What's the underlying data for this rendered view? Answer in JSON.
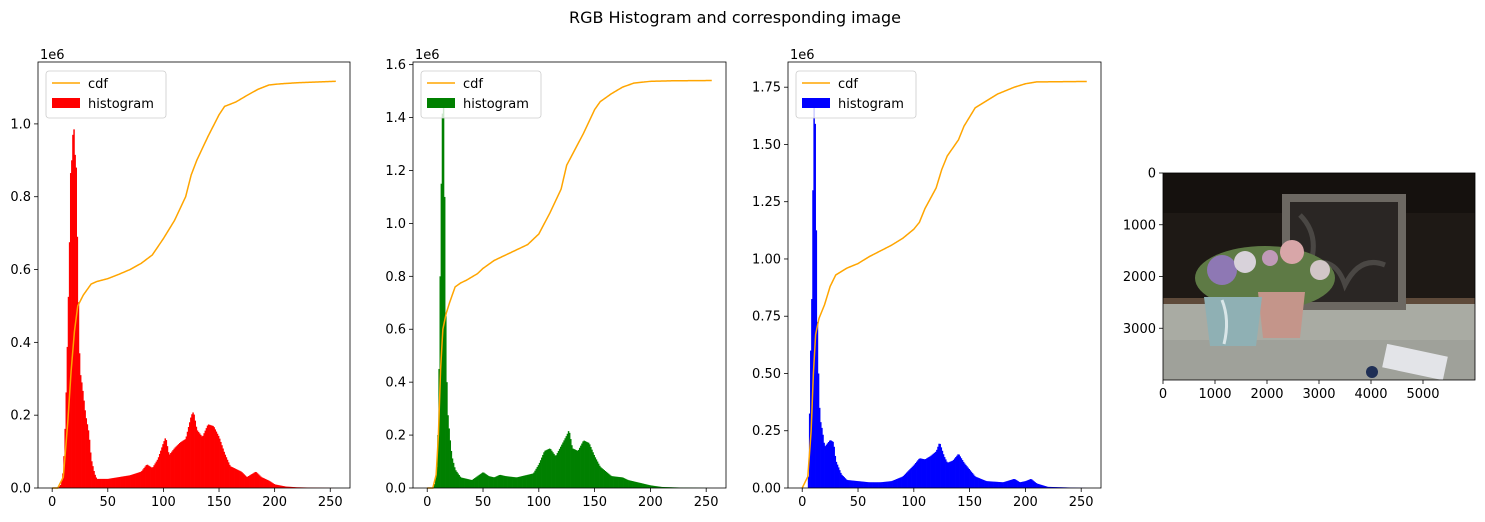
{
  "suptitle": "RGB Histogram and corresponding image",
  "colors": {
    "cdf": "#ffa500",
    "red": "#ff0000",
    "green": "#008000",
    "blue": "#0000ff",
    "axis": "#000000"
  },
  "legend": {
    "cdf": "cdf",
    "histogram": "histogram",
    "placement": "upper left"
  },
  "chart_data": [
    {
      "type": "bar",
      "channel": "red",
      "offset_label": "1e6",
      "xlim": [
        -12.75,
        267.75
      ],
      "ylim": [
        0,
        1.17
      ],
      "xticks": [
        0,
        50,
        100,
        150,
        200,
        250
      ],
      "yticks": [
        0.0,
        0.2,
        0.4,
        0.6,
        0.8,
        1.0
      ],
      "ytick_labels": [
        "0.0",
        "0.2",
        "0.4",
        "0.6",
        "0.8",
        "1.0"
      ],
      "histogram_keypoints": [
        [
          0,
          0
        ],
        [
          5,
          0
        ],
        [
          8,
          0.01
        ],
        [
          10,
          0.05
        ],
        [
          12,
          0.2
        ],
        [
          14,
          0.45
        ],
        [
          15,
          0.6
        ],
        [
          16,
          0.75
        ],
        [
          17,
          0.98
        ],
        [
          18,
          0.82
        ],
        [
          19,
          1.12
        ],
        [
          20,
          0.85
        ],
        [
          21,
          0.98
        ],
        [
          22,
          0.78
        ],
        [
          23,
          0.6
        ],
        [
          24,
          0.42
        ],
        [
          25,
          0.32
        ],
        [
          27,
          0.28
        ],
        [
          30,
          0.2
        ],
        [
          33,
          0.15
        ],
        [
          35,
          0.08
        ],
        [
          38,
          0.04
        ],
        [
          40,
          0.025
        ],
        [
          50,
          0.025
        ],
        [
          60,
          0.03
        ],
        [
          70,
          0.035
        ],
        [
          80,
          0.045
        ],
        [
          85,
          0.065
        ],
        [
          90,
          0.055
        ],
        [
          95,
          0.08
        ],
        [
          100,
          0.125
        ],
        [
          102,
          0.14
        ],
        [
          105,
          0.09
        ],
        [
          110,
          0.11
        ],
        [
          115,
          0.125
        ],
        [
          120,
          0.135
        ],
        [
          125,
          0.2
        ],
        [
          127,
          0.21
        ],
        [
          130,
          0.16
        ],
        [
          135,
          0.14
        ],
        [
          140,
          0.175
        ],
        [
          145,
          0.17
        ],
        [
          150,
          0.14
        ],
        [
          155,
          0.095
        ],
        [
          160,
          0.06
        ],
        [
          170,
          0.045
        ],
        [
          175,
          0.03
        ],
        [
          183,
          0.045
        ],
        [
          188,
          0.03
        ],
        [
          195,
          0.02
        ],
        [
          200,
          0.01
        ],
        [
          210,
          0.004
        ],
        [
          220,
          0.002
        ],
        [
          235,
          0.001
        ],
        [
          255,
          0
        ]
      ],
      "cdf_keypoints": [
        [
          0,
          0
        ],
        [
          5,
          0
        ],
        [
          10,
          0.03
        ],
        [
          14,
          0.18
        ],
        [
          17,
          0.32
        ],
        [
          20,
          0.43
        ],
        [
          23,
          0.5
        ],
        [
          28,
          0.53
        ],
        [
          35,
          0.56
        ],
        [
          40,
          0.567
        ],
        [
          50,
          0.575
        ],
        [
          60,
          0.587
        ],
        [
          70,
          0.6
        ],
        [
          80,
          0.617
        ],
        [
          90,
          0.64
        ],
        [
          100,
          0.685
        ],
        [
          110,
          0.735
        ],
        [
          120,
          0.8
        ],
        [
          125,
          0.86
        ],
        [
          130,
          0.9
        ],
        [
          140,
          0.965
        ],
        [
          150,
          1.025
        ],
        [
          155,
          1.048
        ],
        [
          165,
          1.06
        ],
        [
          175,
          1.078
        ],
        [
          185,
          1.095
        ],
        [
          195,
          1.107
        ],
        [
          205,
          1.11
        ],
        [
          220,
          1.113
        ],
        [
          255,
          1.117
        ]
      ]
    },
    {
      "type": "bar",
      "channel": "green",
      "offset_label": "1e6",
      "xlim": [
        -12.75,
        267.75
      ],
      "ylim": [
        0,
        1.61
      ],
      "xticks": [
        0,
        50,
        100,
        150,
        200,
        250
      ],
      "yticks": [
        0.0,
        0.2,
        0.4,
        0.6,
        0.8,
        1.0,
        1.2,
        1.4,
        1.6
      ],
      "ytick_labels": [
        "0.0",
        "0.2",
        "0.4",
        "0.6",
        "0.8",
        "1.0",
        "1.2",
        "1.4",
        "1.6"
      ],
      "histogram_keypoints": [
        [
          0,
          0
        ],
        [
          5,
          0
        ],
        [
          7,
          0.02
        ],
        [
          9,
          0.1
        ],
        [
          10,
          0.3
        ],
        [
          11,
          0.6
        ],
        [
          12,
          1.0
        ],
        [
          13,
          1.3
        ],
        [
          14,
          1.53
        ],
        [
          15,
          1.4
        ],
        [
          16,
          0.8
        ],
        [
          17,
          0.5
        ],
        [
          18,
          0.3
        ],
        [
          20,
          0.2
        ],
        [
          22,
          0.12
        ],
        [
          25,
          0.07
        ],
        [
          30,
          0.04
        ],
        [
          40,
          0.03
        ],
        [
          50,
          0.06
        ],
        [
          55,
          0.045
        ],
        [
          60,
          0.04
        ],
        [
          65,
          0.05
        ],
        [
          70,
          0.045
        ],
        [
          80,
          0.04
        ],
        [
          90,
          0.05
        ],
        [
          95,
          0.055
        ],
        [
          100,
          0.09
        ],
        [
          105,
          0.14
        ],
        [
          110,
          0.15
        ],
        [
          115,
          0.12
        ],
        [
          120,
          0.16
        ],
        [
          125,
          0.2
        ],
        [
          127,
          0.22
        ],
        [
          130,
          0.15
        ],
        [
          135,
          0.14
        ],
        [
          140,
          0.18
        ],
        [
          145,
          0.17
        ],
        [
          150,
          0.12
        ],
        [
          155,
          0.08
        ],
        [
          165,
          0.045
        ],
        [
          175,
          0.04
        ],
        [
          180,
          0.03
        ],
        [
          185,
          0.025
        ],
        [
          195,
          0.015
        ],
        [
          200,
          0.01
        ],
        [
          210,
          0.004
        ],
        [
          225,
          0.002
        ],
        [
          255,
          0
        ]
      ],
      "cdf_keypoints": [
        [
          0,
          0
        ],
        [
          5,
          0
        ],
        [
          8,
          0.05
        ],
        [
          10,
          0.2
        ],
        [
          12,
          0.45
        ],
        [
          14,
          0.6
        ],
        [
          17,
          0.66
        ],
        [
          20,
          0.7
        ],
        [
          25,
          0.76
        ],
        [
          30,
          0.775
        ],
        [
          35,
          0.785
        ],
        [
          45,
          0.81
        ],
        [
          50,
          0.83
        ],
        [
          60,
          0.86
        ],
        [
          70,
          0.88
        ],
        [
          80,
          0.9
        ],
        [
          90,
          0.92
        ],
        [
          100,
          0.96
        ],
        [
          110,
          1.04
        ],
        [
          120,
          1.13
        ],
        [
          125,
          1.22
        ],
        [
          130,
          1.26
        ],
        [
          140,
          1.34
        ],
        [
          150,
          1.43
        ],
        [
          155,
          1.46
        ],
        [
          165,
          1.49
        ],
        [
          175,
          1.515
        ],
        [
          185,
          1.53
        ],
        [
          200,
          1.537
        ],
        [
          220,
          1.539
        ],
        [
          255,
          1.54
        ]
      ]
    },
    {
      "type": "bar",
      "channel": "blue",
      "offset_label": "1e6",
      "xlim": [
        -12.75,
        267.75
      ],
      "ylim": [
        0,
        1.86
      ],
      "xticks": [
        0,
        50,
        100,
        150,
        200,
        250
      ],
      "yticks": [
        0.0,
        0.25,
        0.5,
        0.75,
        1.0,
        1.25,
        1.5,
        1.75
      ],
      "ytick_labels": [
        "0.00",
        "0.25",
        "0.50",
        "0.75",
        "1.00",
        "1.25",
        "1.50",
        "1.75"
      ],
      "histogram_keypoints": [
        [
          0,
          0
        ],
        [
          5,
          0
        ],
        [
          6,
          0.1
        ],
        [
          7,
          0.55
        ],
        [
          8,
          0.65
        ],
        [
          9,
          1.0
        ],
        [
          10,
          1.6
        ],
        [
          11,
          1.78
        ],
        [
          12,
          1.4
        ],
        [
          13,
          0.85
        ],
        [
          14,
          0.6
        ],
        [
          15,
          0.4
        ],
        [
          16,
          0.3
        ],
        [
          18,
          0.25
        ],
        [
          20,
          0.18
        ],
        [
          25,
          0.21
        ],
        [
          28,
          0.2
        ],
        [
          30,
          0.12
        ],
        [
          35,
          0.06
        ],
        [
          40,
          0.035
        ],
        [
          50,
          0.03
        ],
        [
          60,
          0.025
        ],
        [
          70,
          0.025
        ],
        [
          80,
          0.03
        ],
        [
          90,
          0.05
        ],
        [
          100,
          0.1
        ],
        [
          105,
          0.13
        ],
        [
          110,
          0.125
        ],
        [
          115,
          0.14
        ],
        [
          120,
          0.16
        ],
        [
          123,
          0.2
        ],
        [
          127,
          0.14
        ],
        [
          130,
          0.11
        ],
        [
          135,
          0.12
        ],
        [
          140,
          0.15
        ],
        [
          145,
          0.11
        ],
        [
          150,
          0.08
        ],
        [
          155,
          0.05
        ],
        [
          165,
          0.03
        ],
        [
          180,
          0.025
        ],
        [
          190,
          0.04
        ],
        [
          195,
          0.025
        ],
        [
          200,
          0.03
        ],
        [
          205,
          0.04
        ],
        [
          210,
          0.02
        ],
        [
          220,
          0.005
        ],
        [
          255,
          0
        ]
      ],
      "cdf_keypoints": [
        [
          0,
          0
        ],
        [
          5,
          0.05
        ],
        [
          8,
          0.25
        ],
        [
          10,
          0.5
        ],
        [
          12,
          0.67
        ],
        [
          15,
          0.74
        ],
        [
          20,
          0.8
        ],
        [
          25,
          0.88
        ],
        [
          30,
          0.93
        ],
        [
          40,
          0.96
        ],
        [
          50,
          0.98
        ],
        [
          60,
          1.01
        ],
        [
          70,
          1.035
        ],
        [
          80,
          1.06
        ],
        [
          90,
          1.09
        ],
        [
          100,
          1.13
        ],
        [
          105,
          1.16
        ],
        [
          110,
          1.22
        ],
        [
          120,
          1.31
        ],
        [
          125,
          1.39
        ],
        [
          130,
          1.45
        ],
        [
          140,
          1.52
        ],
        [
          145,
          1.58
        ],
        [
          150,
          1.62
        ],
        [
          155,
          1.66
        ],
        [
          165,
          1.69
        ],
        [
          175,
          1.72
        ],
        [
          190,
          1.75
        ],
        [
          200,
          1.765
        ],
        [
          210,
          1.773
        ],
        [
          255,
          1.775
        ]
      ]
    },
    {
      "type": "image",
      "description_free": true,
      "xlim": [
        0,
        6000
      ],
      "ylim": [
        4000,
        0
      ],
      "xticks": [
        0,
        1000,
        2000,
        3000,
        4000,
        5000
      ],
      "yticks": [
        0,
        1000,
        2000,
        3000
      ]
    }
  ]
}
